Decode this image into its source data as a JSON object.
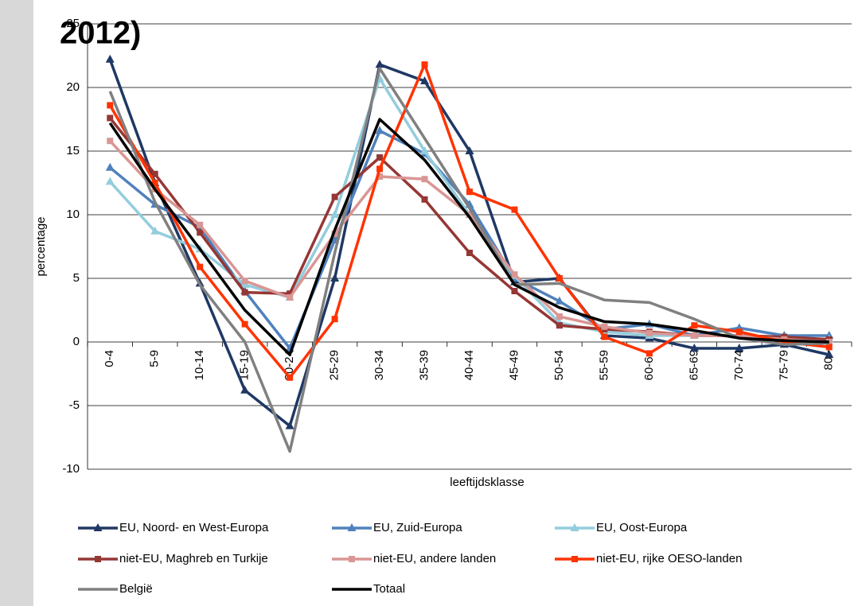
{
  "chart_data": {
    "type": "line",
    "title": "2012)",
    "x_label": "leeftijdsklasse",
    "y_label": "percentage",
    "categories": [
      "0-4",
      "5-9",
      "10-14",
      "15-19",
      "20-24",
      "25-29",
      "30-34",
      "35-39",
      "40-44",
      "45-49",
      "50-54",
      "55-59",
      "60-64",
      "65-69",
      "70-74",
      "75-79",
      "80+"
    ],
    "ylim": [
      -10,
      25
    ],
    "yticks": [
      -10,
      -5,
      0,
      5,
      10,
      15,
      20,
      25
    ],
    "grid": true,
    "legend": "bottom",
    "series": [
      {
        "name": "EU, Noord- en West-Europa",
        "color": "#1f3864",
        "marker": "triangle",
        "values": [
          22.2,
          12.5,
          4.6,
          -3.8,
          -6.6,
          5.0,
          21.8,
          20.5,
          15.0,
          4.7,
          5.0,
          0.5,
          0.3,
          -0.5,
          -0.5,
          -0.2,
          -1.0
        ]
      },
      {
        "name": "EU, Zuid-Europa",
        "color": "#4f81bd",
        "marker": "triangle",
        "values": [
          13.7,
          10.8,
          9.0,
          4.0,
          -0.5,
          8.0,
          16.6,
          14.8,
          10.8,
          5.0,
          3.2,
          1.0,
          1.4,
          0.5,
          1.1,
          0.5,
          0.5
        ]
      },
      {
        "name": "EU, Oost-Europa",
        "color": "#93cddd",
        "marker": "triangle",
        "values": [
          12.6,
          8.7,
          7.3,
          4.5,
          3.5,
          10.0,
          20.7,
          15.0,
          10.0,
          5.2,
          1.5,
          0.8,
          0.5,
          0.5,
          0.5,
          0.2,
          0.2
        ]
      },
      {
        "name": "niet-EU, Maghreb en Turkije",
        "color": "#953735",
        "marker": "square",
        "values": [
          17.6,
          13.2,
          8.6,
          3.9,
          3.8,
          11.4,
          14.5,
          11.2,
          7.0,
          4.0,
          1.3,
          1.0,
          0.8,
          0.5,
          0.5,
          0.4,
          0.2
        ]
      },
      {
        "name": "niet-EU, andere landen",
        "color": "#d99694",
        "marker": "square",
        "values": [
          15.8,
          12.0,
          9.2,
          4.8,
          3.5,
          8.5,
          13.0,
          12.8,
          10.0,
          5.3,
          2.0,
          1.2,
          0.7,
          0.5,
          0.5,
          0.2,
          0.0
        ]
      },
      {
        "name": "niet-EU, rijke OESO-landen",
        "color": "#ff3300",
        "marker": "square",
        "values": [
          18.6,
          12.5,
          5.9,
          1.4,
          -2.8,
          1.8,
          13.6,
          21.8,
          11.8,
          10.4,
          5.0,
          0.4,
          -0.9,
          1.3,
          0.8,
          0.0,
          -0.4
        ]
      },
      {
        "name": "België",
        "color": "#808080",
        "marker": "none",
        "values": [
          19.7,
          11.0,
          4.5,
          0.0,
          -8.6,
          7.0,
          21.5,
          16.0,
          10.5,
          4.5,
          4.6,
          3.3,
          3.1,
          1.8,
          0.3,
          -0.2,
          -0.1
        ]
      },
      {
        "name": "Totaal",
        "color": "#000000",
        "marker": "none",
        "values": [
          17.2,
          12.0,
          7.3,
          2.5,
          -1.0,
          8.8,
          17.5,
          14.3,
          9.8,
          4.5,
          2.7,
          1.6,
          1.4,
          0.9,
          0.3,
          0.1,
          0.0
        ]
      }
    ]
  }
}
